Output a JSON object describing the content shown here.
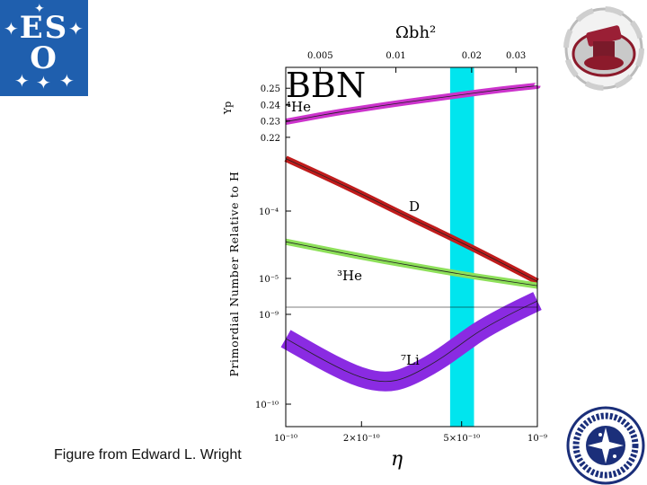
{
  "logos": {
    "eso_letters_top": "ES",
    "eso_letters_bottom": "O"
  },
  "credit": "Figure from Edward L. Wright",
  "chart_data": {
    "type": "line",
    "title": "BBN",
    "xlabel": "η",
    "xscale": "log",
    "xlim": [
      1e-10,
      1e-09
    ],
    "x_ticks": [
      {
        "value": 1e-10,
        "label": "10⁻¹⁰"
      },
      {
        "value": 2e-10,
        "label": "2×10⁻¹⁰"
      },
      {
        "value": 5e-10,
        "label": "5×10⁻¹⁰"
      },
      {
        "value": 1e-09,
        "label": "10⁻⁹"
      }
    ],
    "top_axis": {
      "label": "Ωbh²",
      "ticks": [
        {
          "value": 0.005,
          "label": "0.005"
        },
        {
          "value": 0.01,
          "label": "0.01"
        },
        {
          "value": 0.02,
          "label": "0.02"
        },
        {
          "value": 0.03,
          "label": "0.03"
        }
      ]
    },
    "ylabel": "Primordial Number Relative to H",
    "yp_panel": {
      "ylabel": "Yp",
      "ylim": [
        0.215,
        0.26
      ],
      "ticks": [
        {
          "value": 0.25,
          "label": "0.25"
        },
        {
          "value": 0.24,
          "label": "0.24"
        },
        {
          "value": 0.23,
          "label": "0.23"
        },
        {
          "value": 0.22,
          "label": "0.22"
        }
      ]
    },
    "yscale": "log",
    "ylim": [
      1e-10,
      0.001
    ],
    "y_ticks": [
      {
        "value": 0.0001,
        "label": "10⁻⁴"
      },
      {
        "value": 1e-05,
        "label": "10⁻⁵"
      },
      {
        "value": 1e-09,
        "label": "10⁻⁹"
      },
      {
        "value": 1e-10,
        "label": "10⁻¹⁰"
      }
    ],
    "band": {
      "eta_min": 4.5e-10,
      "eta_max": 5.6e-10,
      "color": "#00e5ee"
    },
    "series": [
      {
        "name": "⁴He",
        "panel": "yp",
        "color": "#cc33cc",
        "x": [
          1e-10,
          1.5e-10,
          2e-10,
          3e-10,
          5e-10,
          7e-10,
          1e-09
        ],
        "y": [
          0.2295,
          0.2345,
          0.2375,
          0.2415,
          0.246,
          0.249,
          0.2515
        ]
      },
      {
        "name": "D",
        "panel": "main",
        "color": "#c01c1c",
        "x": [
          1e-10,
          1.5e-10,
          2e-10,
          3e-10,
          5e-10,
          7e-10,
          1e-09
        ],
        "y": [
          0.0006,
          0.0003,
          0.00018,
          8.5e-05,
          3.4e-05,
          1.8e-05,
          9e-06
        ]
      },
      {
        "name": "³He",
        "panel": "main",
        "color": "#8ee05a",
        "x": [
          1e-10,
          1.5e-10,
          2e-10,
          3e-10,
          5e-10,
          7e-10,
          1e-09
        ],
        "y": [
          3.5e-05,
          2.6e-05,
          2.1e-05,
          1.6e-05,
          1.15e-05,
          9.5e-06,
          7.8e-06
        ]
      },
      {
        "name": "⁷Li",
        "panel": "li",
        "color": "#8a2be2",
        "x": [
          1e-10,
          1.5e-10,
          2e-10,
          2.5e-10,
          3e-10,
          4e-10,
          5e-10,
          6e-10,
          8e-10,
          1e-09
        ],
        "y": [
          5.5e-10,
          2.8e-10,
          1.9e-10,
          1.7e-10,
          1.9e-10,
          3e-10,
          4.8e-10,
          7e-10,
          1.1e-09,
          1.5e-09
        ]
      }
    ]
  }
}
